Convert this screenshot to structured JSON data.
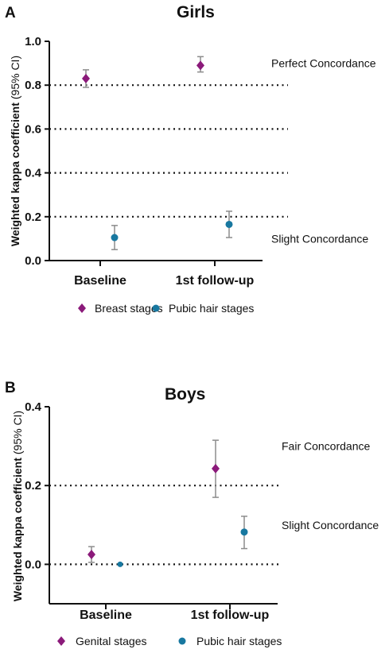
{
  "chart_data": [
    {
      "panel": "A",
      "type": "scatter",
      "title": "Girls",
      "ylabel": "Weighted kappa coefficient",
      "ylabel_suffix": "(95% CI)",
      "ylim": [
        0,
        1.0
      ],
      "yticks": [
        "0.0",
        "0.2",
        "0.4",
        "0.6",
        "0.8",
        "1.0"
      ],
      "categories": [
        "Baseline",
        "1st follow-up"
      ],
      "reference_lines": [
        0.2,
        0.4,
        0.6,
        0.8
      ],
      "annotations": [
        {
          "text": "Perfect Concordance",
          "y": 0.9
        },
        {
          "text": "Slight Concordance",
          "y": 0.1
        }
      ],
      "series": [
        {
          "name": "Breast stages",
          "marker": "diamond",
          "color": "#8b1a7a",
          "values": [
            0.83,
            0.89
          ],
          "ci_low": [
            0.79,
            0.86
          ],
          "ci_high": [
            0.87,
            0.93
          ]
        },
        {
          "name": "Pubic hair stages",
          "marker": "circle",
          "color": "#1878a0",
          "values": [
            0.105,
            0.165
          ],
          "ci_low": [
            0.05,
            0.105
          ],
          "ci_high": [
            0.16,
            0.225
          ]
        }
      ],
      "legend_position": "bottom"
    },
    {
      "panel": "B",
      "type": "scatter",
      "title": "Boys",
      "ylabel": "Weighted kappa coefficient",
      "ylabel_suffix": "(95% CI)",
      "ylim": [
        -0.1,
        0.4
      ],
      "yticks": [
        "0.0",
        "0.2",
        "0.4"
      ],
      "categories": [
        "Baseline",
        "1st follow-up"
      ],
      "reference_lines": [
        0.0,
        0.2
      ],
      "annotations": [
        {
          "text": "Fair Concordance",
          "y": 0.3
        },
        {
          "text": "Slight Concordance",
          "y": 0.1
        }
      ],
      "series": [
        {
          "name": "Genital stages",
          "marker": "diamond",
          "color": "#8b1a7a",
          "values": [
            0.025,
            0.243
          ],
          "ci_low": [
            0.005,
            0.17
          ],
          "ci_high": [
            0.045,
            0.315
          ]
        },
        {
          "name": "Pubic hair stages",
          "marker": "circle",
          "color": "#1878a0",
          "values": [
            0.0,
            0.082
          ],
          "ci_low": [
            null,
            0.04
          ],
          "ci_high": [
            null,
            0.122
          ]
        }
      ],
      "legend_position": "bottom"
    }
  ]
}
